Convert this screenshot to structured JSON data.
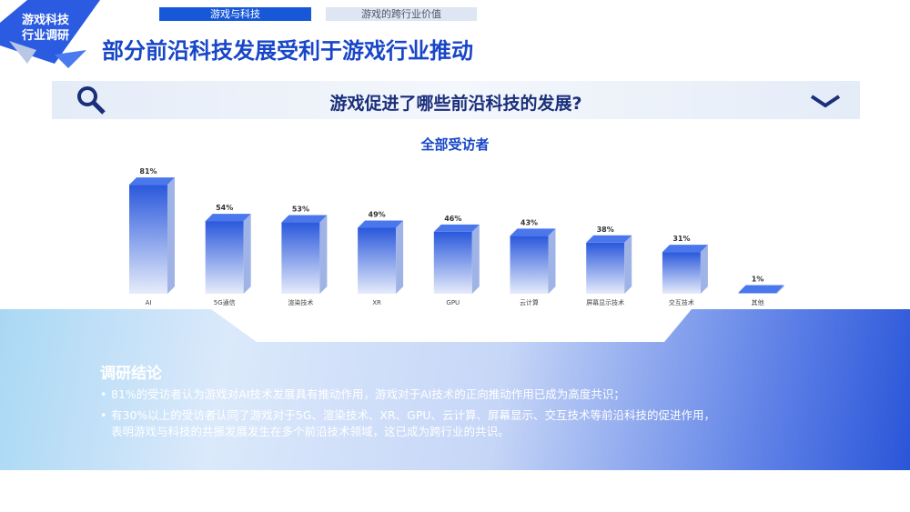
{
  "logo": {
    "line1": "游戏科技",
    "line2": "行业调研"
  },
  "tabs": [
    {
      "label": "游戏与科技",
      "active": true
    },
    {
      "label": "游戏的跨行业价值",
      "active": false
    }
  ],
  "title": "部分前沿科技发展受利于游戏行业推动",
  "question": {
    "text": "游戏促进了哪些前沿科技的发展?",
    "icon": "search-icon",
    "toggle_icon": "chevron-down-icon"
  },
  "chart_data": {
    "type": "bar",
    "title": "全部受访者",
    "categories": [
      "AI",
      "5G通信",
      "渲染技术",
      "XR",
      "GPU",
      "云计算",
      "屏幕显示技术",
      "交互技术",
      "其他"
    ],
    "values": [
      81,
      54,
      53,
      49,
      46,
      43,
      38,
      31,
      1
    ],
    "unit": "%",
    "ylim": [
      0,
      100
    ],
    "grid": false,
    "color": "#2f5fe0"
  },
  "conclusion": {
    "heading": "调研结论",
    "bullets": [
      "81%的受访者认为游戏对AI技术发展具有推动作用，游戏对于AI技术的正向推动作用已成为高度共识；",
      "有30%以上的受访者认同了游戏对于5G、渲染技术、XR、GPU、云计算、屏幕显示、交互技术等前沿科技的促进作用，",
      "表明游戏与科技的共振发展发生在多个前沿技术领域，这已成为跨行业的共识。"
    ]
  }
}
